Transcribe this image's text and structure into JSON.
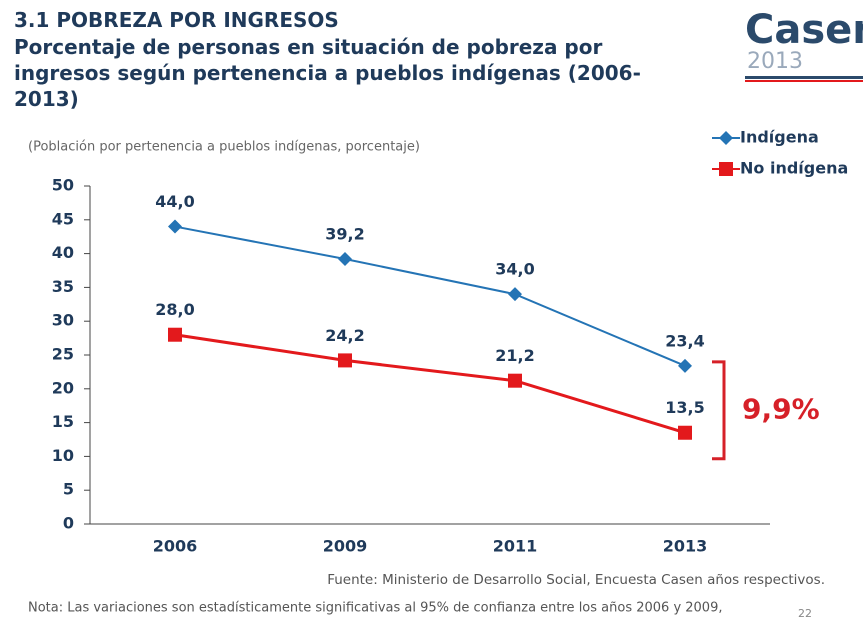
{
  "chart_data": {
    "type": "line",
    "title": "3.1 POBREZA POR INGRESOS",
    "subtitle": "Porcentaje de personas en situación de pobreza por ingresos según pertenencia a pueblos indígenas (2006-2013)",
    "unit_note": "(Población por pertenencia a pueblos indígenas, porcentaje)",
    "categories": [
      "2006",
      "2009",
      "2011",
      "2013"
    ],
    "series": [
      {
        "name": "Indígena",
        "color": "#2474b5",
        "marker": "diamond",
        "values": [
          44.0,
          39.2,
          34.0,
          23.4
        ],
        "value_labels": [
          "44,0",
          "39,2",
          "34,0",
          "23,4"
        ]
      },
      {
        "name": "No indígena",
        "color": "#e3191c",
        "marker": "square",
        "values": [
          28.0,
          24.2,
          21.2,
          13.5
        ],
        "value_labels": [
          "28,0",
          "24,2",
          "21,2",
          "13,5"
        ]
      }
    ],
    "ylim": [
      0,
      50
    ],
    "yticks": [
      0,
      5,
      10,
      15,
      20,
      25,
      30,
      35,
      40,
      45,
      50
    ],
    "grid": false,
    "legend": "top-right",
    "annotation": "9,9%",
    "source": "Fuente: Ministerio de Desarrollo Social, Encuesta Casen años respectivos.",
    "note": "Nota: Las variaciones son estadísticamente significativas al 95% de confianza entre los años 2006 y 2009,",
    "page_number": "22",
    "logo": {
      "name": "Casen",
      "year": "2013"
    }
  }
}
